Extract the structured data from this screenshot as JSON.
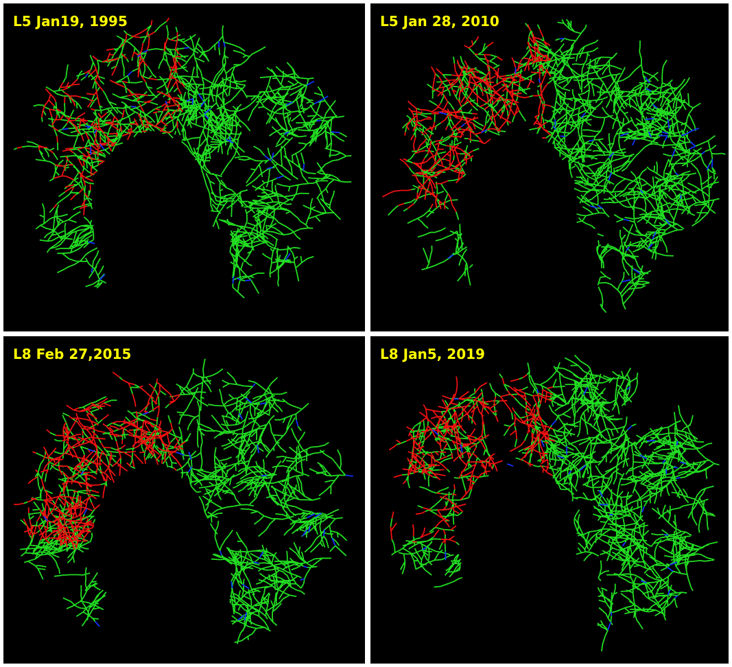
{
  "panels": [
    {
      "label": "L5 Jan19, 1995"
    },
    {
      "label": "L5 Jan 28, 2010"
    },
    {
      "label": "L8 Feb 27,2015"
    },
    {
      "label": "L8 Jan5, 2019"
    }
  ]
}
